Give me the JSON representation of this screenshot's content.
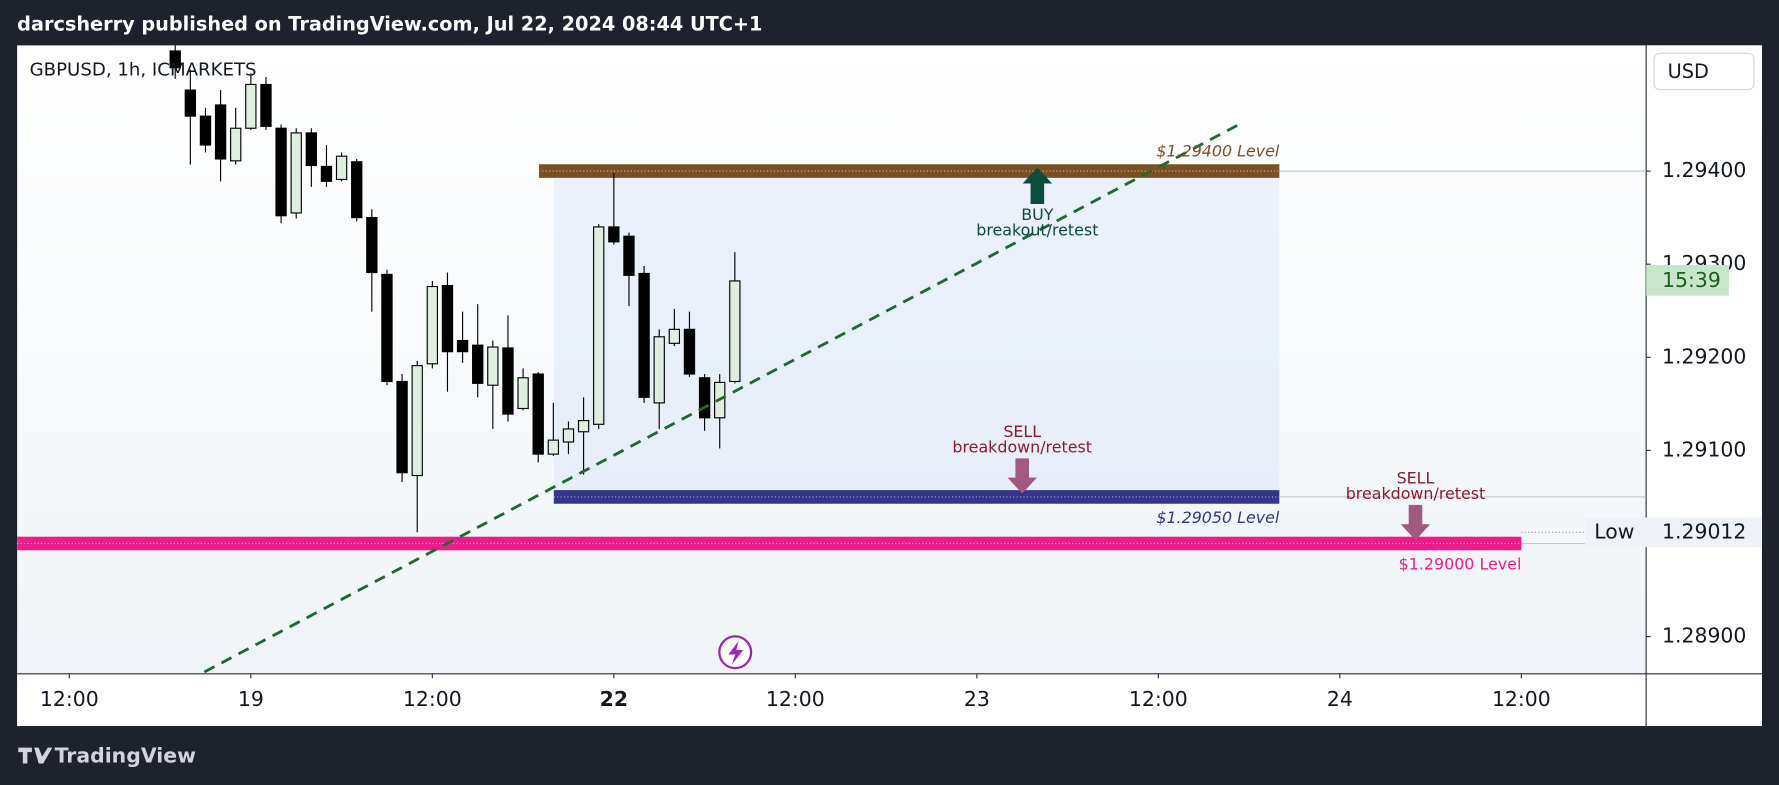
{
  "header": "darcsherry published on TradingView.com, Jul 22, 2024 08:44 UTC+1",
  "footer": "TradingView",
  "chart_data": {
    "type": "candlestick",
    "symbol": "GBPUSD, 1h, ICMARKETS",
    "currency": "USD",
    "countdown": "15:39",
    "xlim": [
      -3.45,
      104.25
    ],
    "ylim": [
      1.2886,
      1.29535
    ],
    "yticks": [
      {
        "value": 1.289,
        "label": "1.28900"
      },
      {
        "value": 1.291,
        "label": "1.29100"
      },
      {
        "value": 1.292,
        "label": "1.29200"
      },
      {
        "value": 1.293,
        "label": "1.29300"
      },
      {
        "value": 1.294,
        "label": "1.29400"
      }
    ],
    "xticks": [
      {
        "value": 0,
        "label": "12:00"
      },
      {
        "value": 12,
        "label": "19"
      },
      {
        "value": 24,
        "label": "12:00"
      },
      {
        "value": 36,
        "label": "22",
        "bold": true
      },
      {
        "value": 48,
        "label": "12:00"
      },
      {
        "value": 60,
        "label": "23"
      },
      {
        "value": 72,
        "label": "12:00"
      },
      {
        "value": 84,
        "label": "24"
      },
      {
        "value": 96,
        "label": "12:00"
      }
    ],
    "up_color": "#dfeee0",
    "down_color": "#000000",
    "candles": {
      "x": [
        7,
        8,
        9,
        10,
        11,
        12,
        13,
        14,
        15,
        16,
        17,
        18,
        19,
        20,
        21,
        22,
        23,
        24,
        25,
        26,
        27,
        28,
        29,
        30,
        31,
        32,
        33,
        34,
        35,
        36,
        37,
        38,
        39,
        40,
        41,
        42,
        43,
        44
      ],
      "open": [
        1.29529,
        1.29487,
        1.29459,
        1.29471,
        1.29411,
        1.29446,
        1.29493,
        1.29446,
        1.29355,
        1.29441,
        1.29405,
        1.29391,
        1.2941,
        1.2935,
        1.29289,
        1.29174,
        1.29073,
        1.29193,
        1.29277,
        1.29218,
        1.29213,
        1.2917,
        1.2921,
        1.29145,
        1.29182,
        1.29096,
        1.29109,
        1.2912,
        1.29128,
        1.2934,
        1.2933,
        1.2929,
        1.29151,
        1.29215,
        1.2923,
        1.29178,
        1.29135,
        1.29174
      ],
      "high": [
        1.29538,
        1.29509,
        1.29468,
        1.29487,
        1.29468,
        1.29505,
        1.29501,
        1.2945,
        1.29446,
        1.29446,
        1.29428,
        1.2942,
        1.29413,
        1.29359,
        1.29294,
        1.29182,
        1.29196,
        1.29282,
        1.29291,
        1.29249,
        1.29257,
        1.29218,
        1.29245,
        1.29188,
        1.29184,
        1.29151,
        1.29131,
        1.29157,
        1.29343,
        1.29398,
        1.29334,
        1.29298,
        1.2923,
        1.29252,
        1.29249,
        1.29182,
        1.29182,
        1.29313
      ],
      "low": [
        1.29499,
        1.29407,
        1.2942,
        1.29389,
        1.29407,
        1.29444,
        1.29444,
        1.29344,
        1.29349,
        1.29383,
        1.29383,
        1.29389,
        1.29346,
        1.29249,
        1.2917,
        1.29066,
        1.29012,
        1.29188,
        1.29163,
        1.29194,
        1.29157,
        1.29123,
        1.29131,
        1.29143,
        1.29087,
        1.29094,
        1.29096,
        1.29074,
        1.29123,
        1.29321,
        1.29255,
        1.29151,
        1.29123,
        1.29212,
        1.29179,
        1.29121,
        1.29102,
        1.29172
      ],
      "close": [
        1.29511,
        1.29459,
        1.29428,
        1.29413,
        1.29446,
        1.29493,
        1.29448,
        1.29352,
        1.29441,
        1.29406,
        1.29389,
        1.29416,
        1.2935,
        1.29291,
        1.29174,
        1.29076,
        1.29191,
        1.29276,
        1.29206,
        1.29206,
        1.29172,
        1.29211,
        1.29139,
        1.29178,
        1.29096,
        1.29111,
        1.29123,
        1.29132,
        1.2934,
        1.29324,
        1.29288,
        1.29157,
        1.29222,
        1.2923,
        1.29182,
        1.29135,
        1.29173,
        1.29282
      ]
    },
    "low_marker": {
      "label": "Low",
      "value": 1.29012
    },
    "levels": [
      {
        "label": "$1.29400 Level",
        "value": 1.294,
        "x": [
          31.05,
          80
        ],
        "color": "#7b5123",
        "label_side": "above",
        "italic": true
      },
      {
        "label": "$1.29050 Level",
        "value": 1.2905,
        "x": [
          32.03,
          80
        ],
        "color": "#34348f",
        "label_side": "below",
        "italic": true
      },
      {
        "label": "$1.29000 Level",
        "value": 1.29,
        "x": [
          -3.45,
          96
        ],
        "color": "#ec1c8c",
        "label_side": "below",
        "italic": false
      }
    ],
    "trendline": {
      "x": [
        8.93,
        77.33
      ],
      "y": [
        1.28862,
        1.2945
      ],
      "color": "#1e6a2c",
      "dashed": true
    },
    "signals": [
      {
        "text": [
          "BUY",
          "breakout/retest"
        ],
        "x": 64,
        "value": 1.294,
        "direction": "up",
        "color": "#0c4a3e",
        "arrow_color": "#0d4d3e"
      },
      {
        "text": [
          "SELL",
          "breakdown/retest"
        ],
        "x": 63,
        "value": 1.2905,
        "direction": "down",
        "color": "#8b1a2e",
        "arrow_color": "#a3597f"
      },
      {
        "text": [
          "SELL",
          "breakdown/retest"
        ],
        "x": 89,
        "value": 1.29,
        "direction": "down",
        "color": "#8b1a2e",
        "arrow_color": "#a3597f"
      }
    ]
  }
}
